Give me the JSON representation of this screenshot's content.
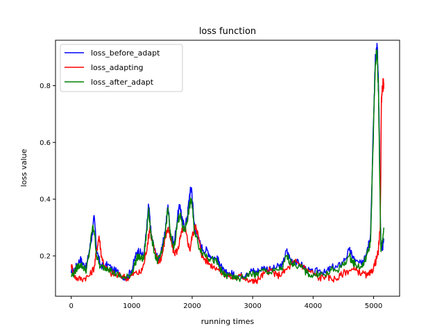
{
  "chart_data": {
    "type": "line",
    "title": "loss function",
    "xlabel": "running times",
    "ylabel": "loss value",
    "xlim": [
      -260,
      5430
    ],
    "ylim": [
      0.058,
      0.96
    ],
    "xticks": [
      0,
      1000,
      2000,
      3000,
      4000,
      5000
    ],
    "yticks": [
      0.2,
      0.4,
      0.6,
      0.8
    ],
    "xtick_labels": [
      "0",
      "1000",
      "2000",
      "3000",
      "4000",
      "5000"
    ],
    "ytick_labels": [
      "0.2",
      "0.4",
      "0.6",
      "0.8"
    ],
    "grid": false,
    "legend_position": "top-left",
    "series": [
      {
        "name": "loss_before_adapt",
        "color": "#0000ff",
        "points": [
          [
            0,
            0.14
          ],
          [
            50,
            0.15
          ],
          [
            100,
            0.17
          ],
          [
            150,
            0.19
          ],
          [
            200,
            0.17
          ],
          [
            250,
            0.16
          ],
          [
            300,
            0.22
          ],
          [
            350,
            0.28
          ],
          [
            380,
            0.34
          ],
          [
            420,
            0.22
          ],
          [
            480,
            0.17
          ],
          [
            550,
            0.16
          ],
          [
            600,
            0.17
          ],
          [
            700,
            0.15
          ],
          [
            800,
            0.14
          ],
          [
            900,
            0.12
          ],
          [
            1000,
            0.15
          ],
          [
            1050,
            0.19
          ],
          [
            1100,
            0.22
          ],
          [
            1150,
            0.21
          ],
          [
            1200,
            0.2
          ],
          [
            1250,
            0.3
          ],
          [
            1280,
            0.38
          ],
          [
            1320,
            0.28
          ],
          [
            1380,
            0.22
          ],
          [
            1430,
            0.19
          ],
          [
            1500,
            0.22
          ],
          [
            1560,
            0.3
          ],
          [
            1600,
            0.38
          ],
          [
            1640,
            0.28
          ],
          [
            1700,
            0.24
          ],
          [
            1760,
            0.34
          ],
          [
            1800,
            0.38
          ],
          [
            1840,
            0.32
          ],
          [
            1880,
            0.3
          ],
          [
            1920,
            0.34
          ],
          [
            1960,
            0.42
          ],
          [
            1990,
            0.44
          ],
          [
            2030,
            0.32
          ],
          [
            2100,
            0.26
          ],
          [
            2180,
            0.22
          ],
          [
            2250,
            0.22
          ],
          [
            2300,
            0.2
          ],
          [
            2400,
            0.19
          ],
          [
            2450,
            0.18
          ],
          [
            2500,
            0.15
          ],
          [
            2550,
            0.14
          ],
          [
            2650,
            0.14
          ],
          [
            2700,
            0.13
          ],
          [
            2800,
            0.13
          ],
          [
            2900,
            0.14
          ],
          [
            3000,
            0.15
          ],
          [
            3050,
            0.14
          ],
          [
            3100,
            0.15
          ],
          [
            3200,
            0.16
          ],
          [
            3300,
            0.15
          ],
          [
            3400,
            0.16
          ],
          [
            3500,
            0.17
          ],
          [
            3560,
            0.22
          ],
          [
            3620,
            0.19
          ],
          [
            3700,
            0.18
          ],
          [
            3800,
            0.17
          ],
          [
            3900,
            0.15
          ],
          [
            4000,
            0.14
          ],
          [
            4100,
            0.15
          ],
          [
            4200,
            0.14
          ],
          [
            4300,
            0.16
          ],
          [
            4400,
            0.16
          ],
          [
            4500,
            0.18
          ],
          [
            4600,
            0.22
          ],
          [
            4650,
            0.2
          ],
          [
            4700,
            0.18
          ],
          [
            4800,
            0.17
          ],
          [
            4850,
            0.2
          ],
          [
            4900,
            0.23
          ],
          [
            4950,
            0.28
          ],
          [
            5000,
            0.68
          ],
          [
            5030,
            0.91
          ],
          [
            5060,
            0.94
          ],
          [
            5080,
            0.8
          ],
          [
            5100,
            0.55
          ],
          [
            5120,
            0.24
          ],
          [
            5150,
            0.23
          ],
          [
            5170,
            0.26
          ]
        ]
      },
      {
        "name": "loss_adapting",
        "color": "#ff0000",
        "points": [
          [
            0,
            0.17
          ],
          [
            50,
            0.13
          ],
          [
            100,
            0.12
          ],
          [
            200,
            0.12
          ],
          [
            300,
            0.13
          ],
          [
            380,
            0.16
          ],
          [
            420,
            0.22
          ],
          [
            460,
            0.27
          ],
          [
            500,
            0.2
          ],
          [
            560,
            0.16
          ],
          [
            650,
            0.14
          ],
          [
            750,
            0.13
          ],
          [
            850,
            0.13
          ],
          [
            950,
            0.12
          ],
          [
            1050,
            0.14
          ],
          [
            1150,
            0.14
          ],
          [
            1200,
            0.17
          ],
          [
            1260,
            0.24
          ],
          [
            1300,
            0.3
          ],
          [
            1330,
            0.26
          ],
          [
            1400,
            0.2
          ],
          [
            1450,
            0.18
          ],
          [
            1500,
            0.2
          ],
          [
            1550,
            0.26
          ],
          [
            1600,
            0.3
          ],
          [
            1640,
            0.26
          ],
          [
            1700,
            0.21
          ],
          [
            1760,
            0.22
          ],
          [
            1800,
            0.26
          ],
          [
            1850,
            0.3
          ],
          [
            1900,
            0.28
          ],
          [
            1960,
            0.22
          ],
          [
            2000,
            0.27
          ],
          [
            2060,
            0.31
          ],
          [
            2100,
            0.27
          ],
          [
            2150,
            0.21
          ],
          [
            2200,
            0.19
          ],
          [
            2300,
            0.17
          ],
          [
            2400,
            0.16
          ],
          [
            2500,
            0.14
          ],
          [
            2600,
            0.13
          ],
          [
            2700,
            0.12
          ],
          [
            2800,
            0.13
          ],
          [
            2900,
            0.12
          ],
          [
            3000,
            0.11
          ],
          [
            3050,
            0.11
          ],
          [
            3100,
            0.12
          ],
          [
            3200,
            0.14
          ],
          [
            3300,
            0.15
          ],
          [
            3400,
            0.13
          ],
          [
            3500,
            0.14
          ],
          [
            3600,
            0.16
          ],
          [
            3700,
            0.18
          ],
          [
            3800,
            0.17
          ],
          [
            3900,
            0.15
          ],
          [
            4000,
            0.14
          ],
          [
            4100,
            0.12
          ],
          [
            4200,
            0.13
          ],
          [
            4300,
            0.12
          ],
          [
            4400,
            0.12
          ],
          [
            4500,
            0.14
          ],
          [
            4600,
            0.15
          ],
          [
            4700,
            0.15
          ],
          [
            4800,
            0.14
          ],
          [
            4900,
            0.13
          ],
          [
            4960,
            0.14
          ],
          [
            5000,
            0.16
          ],
          [
            5050,
            0.19
          ],
          [
            5080,
            0.22
          ],
          [
            5110,
            0.3
          ],
          [
            5130,
            0.76
          ],
          [
            5150,
            0.8
          ],
          [
            5170,
            0.81
          ]
        ]
      },
      {
        "name": "loss_after_adapt",
        "color": "#008000",
        "points": [
          [
            0,
            0.13
          ],
          [
            50,
            0.14
          ],
          [
            100,
            0.16
          ],
          [
            150,
            0.17
          ],
          [
            200,
            0.16
          ],
          [
            250,
            0.15
          ],
          [
            300,
            0.21
          ],
          [
            350,
            0.3
          ],
          [
            380,
            0.29
          ],
          [
            420,
            0.2
          ],
          [
            480,
            0.16
          ],
          [
            550,
            0.16
          ],
          [
            600,
            0.16
          ],
          [
            700,
            0.14
          ],
          [
            800,
            0.13
          ],
          [
            900,
            0.12
          ],
          [
            1000,
            0.14
          ],
          [
            1050,
            0.17
          ],
          [
            1100,
            0.2
          ],
          [
            1150,
            0.19
          ],
          [
            1200,
            0.19
          ],
          [
            1250,
            0.29
          ],
          [
            1280,
            0.37
          ],
          [
            1320,
            0.27
          ],
          [
            1380,
            0.21
          ],
          [
            1430,
            0.18
          ],
          [
            1500,
            0.21
          ],
          [
            1560,
            0.29
          ],
          [
            1600,
            0.37
          ],
          [
            1640,
            0.27
          ],
          [
            1700,
            0.23
          ],
          [
            1760,
            0.32
          ],
          [
            1800,
            0.35
          ],
          [
            1840,
            0.3
          ],
          [
            1880,
            0.29
          ],
          [
            1920,
            0.33
          ],
          [
            1960,
            0.38
          ],
          [
            1990,
            0.4
          ],
          [
            2030,
            0.3
          ],
          [
            2100,
            0.24
          ],
          [
            2180,
            0.21
          ],
          [
            2250,
            0.2
          ],
          [
            2300,
            0.19
          ],
          [
            2400,
            0.18
          ],
          [
            2450,
            0.16
          ],
          [
            2500,
            0.14
          ],
          [
            2550,
            0.13
          ],
          [
            2650,
            0.13
          ],
          [
            2700,
            0.12
          ],
          [
            2800,
            0.12
          ],
          [
            2900,
            0.13
          ],
          [
            3000,
            0.14
          ],
          [
            3050,
            0.13
          ],
          [
            3100,
            0.14
          ],
          [
            3200,
            0.15
          ],
          [
            3300,
            0.14
          ],
          [
            3400,
            0.15
          ],
          [
            3500,
            0.16
          ],
          [
            3560,
            0.2
          ],
          [
            3620,
            0.18
          ],
          [
            3700,
            0.17
          ],
          [
            3800,
            0.16
          ],
          [
            3900,
            0.14
          ],
          [
            4000,
            0.13
          ],
          [
            4100,
            0.14
          ],
          [
            4200,
            0.13
          ],
          [
            4300,
            0.15
          ],
          [
            4400,
            0.15
          ],
          [
            4500,
            0.17
          ],
          [
            4600,
            0.2
          ],
          [
            4650,
            0.18
          ],
          [
            4700,
            0.17
          ],
          [
            4800,
            0.16
          ],
          [
            4850,
            0.18
          ],
          [
            4900,
            0.21
          ],
          [
            4950,
            0.25
          ],
          [
            5000,
            0.66
          ],
          [
            5030,
            0.88
          ],
          [
            5060,
            0.92
          ],
          [
            5080,
            0.78
          ],
          [
            5100,
            0.5
          ],
          [
            5120,
            0.22
          ],
          [
            5150,
            0.26
          ],
          [
            5170,
            0.3
          ]
        ]
      }
    ]
  }
}
